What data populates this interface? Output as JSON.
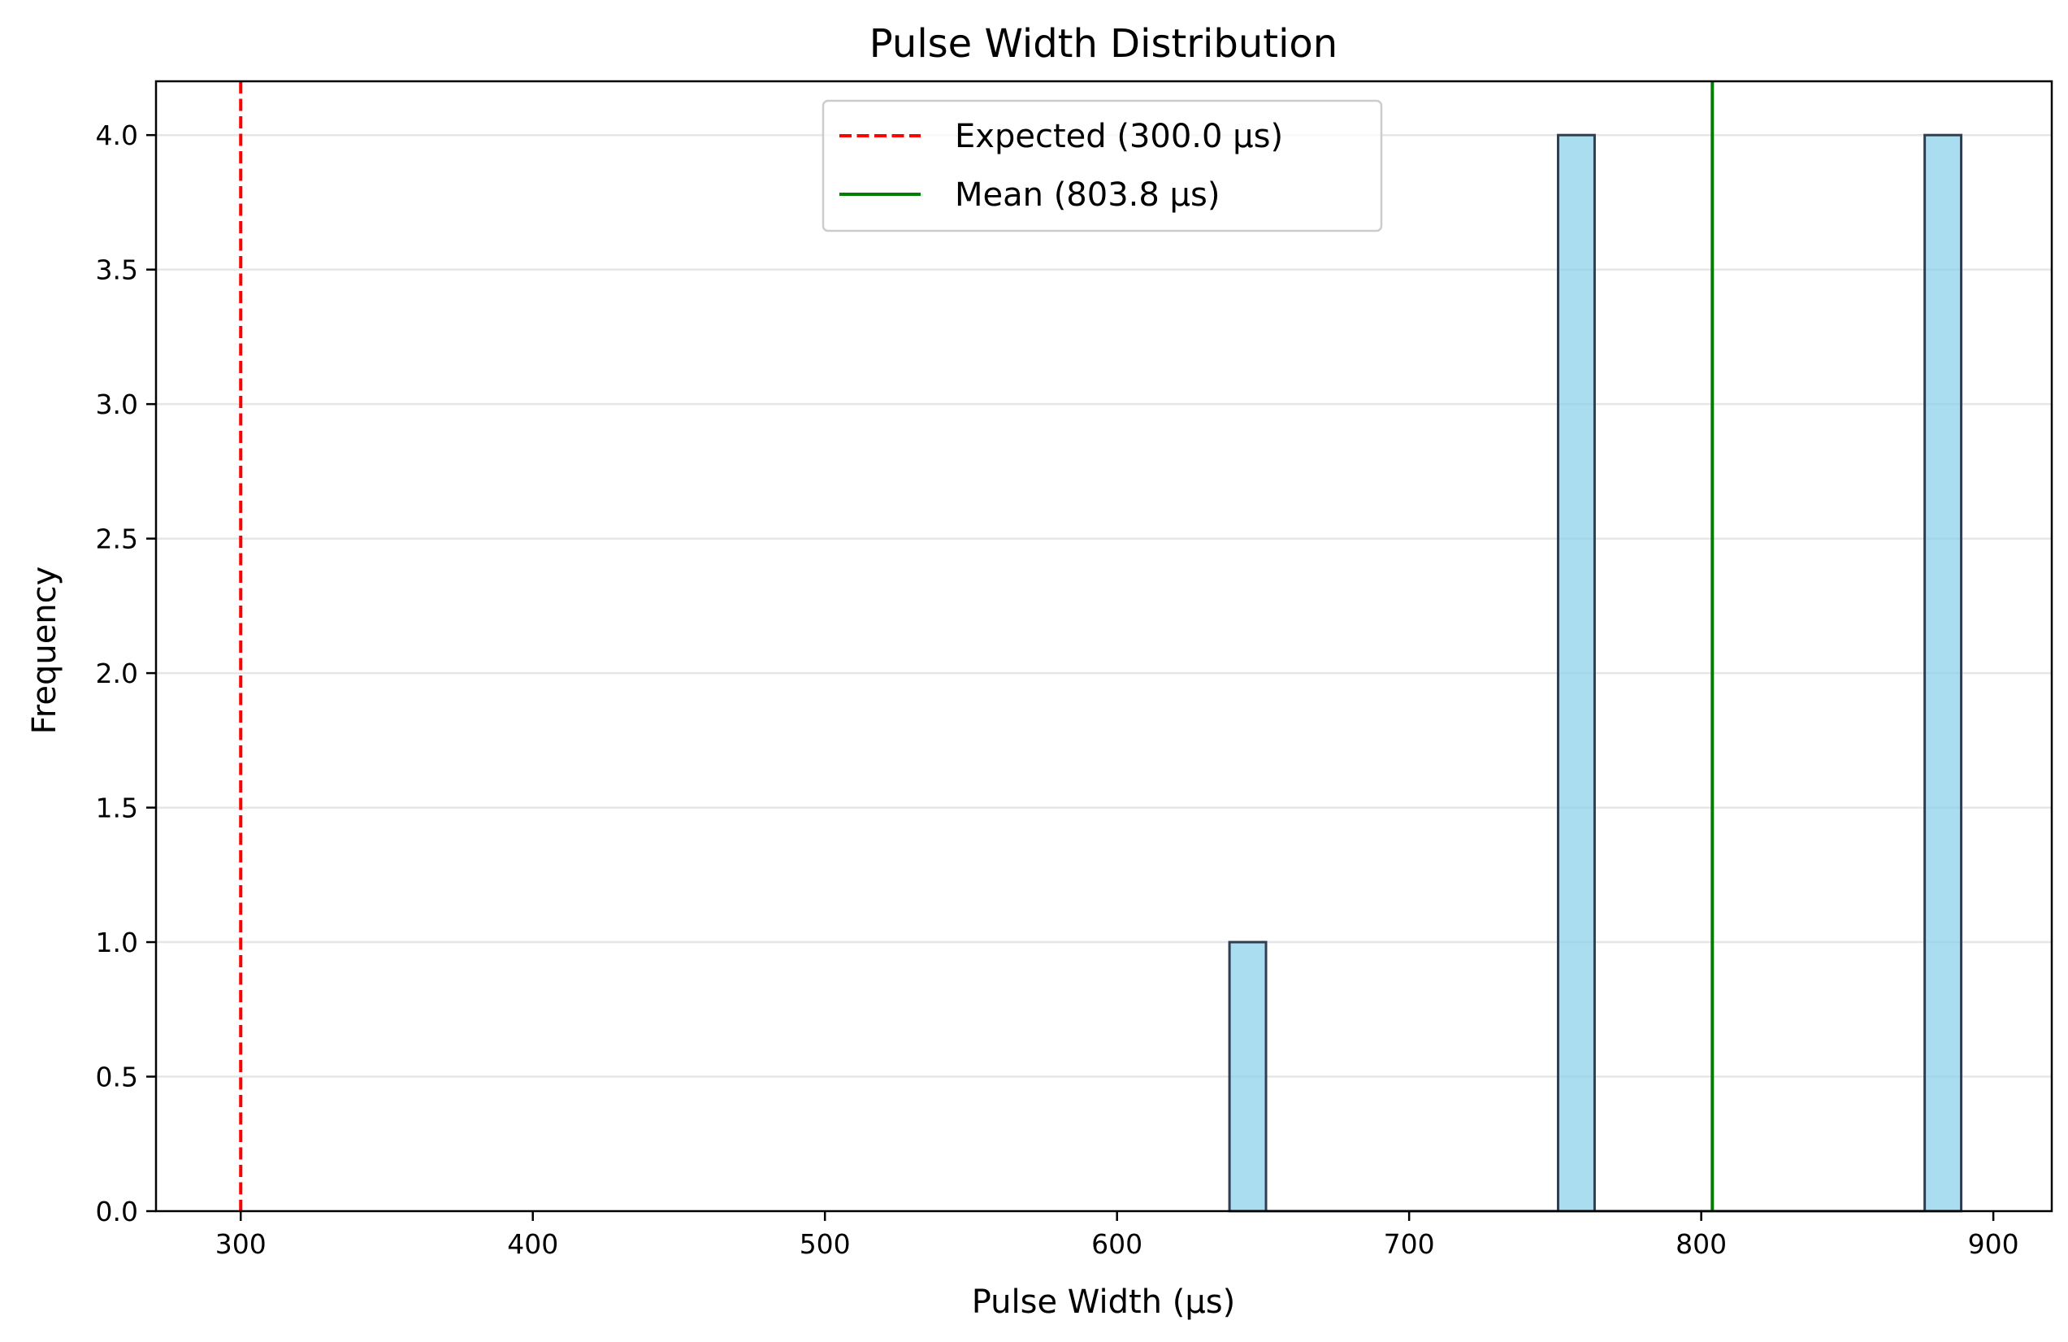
{
  "chart_data": {
    "type": "bar",
    "title": "Pulse Width Distribution",
    "xlabel": "Pulse Width (µs)",
    "ylabel": "Frequency",
    "xlim": [
      271,
      920
    ],
    "ylim": [
      0,
      4.2
    ],
    "x_ticks": [
      300,
      400,
      500,
      600,
      700,
      800,
      900
    ],
    "y_ticks": [
      0.0,
      0.5,
      1.0,
      1.5,
      2.0,
      2.5,
      3.0,
      3.5,
      4.0
    ],
    "y_tick_labels": [
      "0.0",
      "0.5",
      "1.0",
      "1.5",
      "2.0",
      "2.5",
      "3.0",
      "3.5",
      "4.0"
    ],
    "grid": "horizontal",
    "bars": [
      {
        "x_start": 638.5,
        "x_end": 651.0,
        "value": 1
      },
      {
        "x_start": 751.0,
        "x_end": 763.5,
        "value": 4
      },
      {
        "x_start": 876.5,
        "x_end": 889.0,
        "value": 4
      }
    ],
    "reference_lines": [
      {
        "label": "Expected (300.0 µs)",
        "x": 300.0,
        "style": "dashed",
        "color": "#ff0000"
      },
      {
        "label": "Mean (803.8 µs)",
        "x": 803.8,
        "style": "solid",
        "color": "#008000"
      }
    ],
    "legend_position": "top-center",
    "colors": {
      "bar_fill": "#87ceeb",
      "bar_edge": "#2f3f4f"
    }
  }
}
